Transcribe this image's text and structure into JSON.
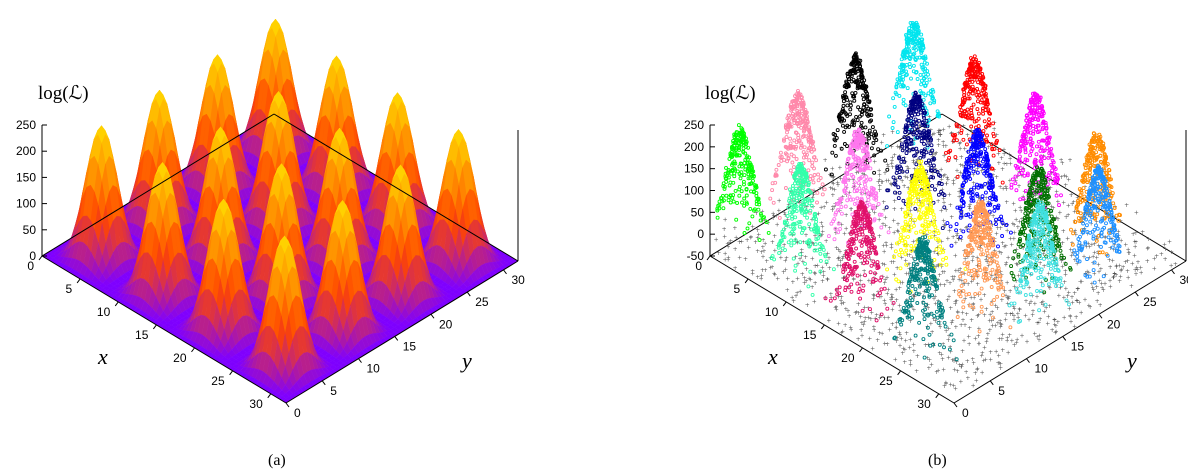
{
  "captions": [
    "(a)",
    "(b)"
  ],
  "chart_data": [
    {
      "type": "surface",
      "panel": "(a)",
      "zlabel": "log(ℒ)",
      "xlabel": "x",
      "ylabel": "y",
      "xlim": [
        0,
        32
      ],
      "ylim": [
        0,
        32
      ],
      "zlim": [
        0,
        250
      ],
      "x_ticks": [
        "0",
        "5",
        "10",
        "15",
        "20",
        "25",
        "30"
      ],
      "y_ticks": [
        "0",
        "5",
        "10",
        "15",
        "20",
        "25",
        "30"
      ],
      "z_ticks": [
        "0",
        "50",
        "100",
        "150",
        "200",
        "250"
      ],
      "peaks_grid": "4 x 4 egg-box",
      "peak_value": 250,
      "trough_value": 0,
      "colormap": [
        "#000000",
        "#7f00ff",
        "#ff4500",
        "#ffd700"
      ]
    },
    {
      "type": "scatter3d",
      "panel": "(b)",
      "zlabel": "log(ℒ)",
      "xlabel": "x",
      "ylabel": "y",
      "xlim": [
        0,
        32
      ],
      "ylim": [
        0,
        32
      ],
      "zlim": [
        -50,
        250
      ],
      "x_ticks": [
        "0",
        "5",
        "10",
        "15",
        "20",
        "25",
        "30"
      ],
      "y_ticks": [
        "0",
        "5",
        "10",
        "15",
        "20",
        "25",
        "30"
      ],
      "z_ticks": [
        "-50",
        "0",
        "50",
        "100",
        "150",
        "200",
        "250"
      ],
      "background_points_color": "#555555",
      "clusters": [
        {
          "x": 26,
          "y": 2,
          "color": "#008080"
        },
        {
          "x": 2,
          "y": 2,
          "color": "#00ff00"
        },
        {
          "x": 2,
          "y": 10,
          "color": "#ff88aa"
        },
        {
          "x": 2,
          "y": 18,
          "color": "#000000"
        },
        {
          "x": 10,
          "y": 2,
          "color": "#33ffaa"
        },
        {
          "x": 10,
          "y": 10,
          "color": "#ff77ee"
        },
        {
          "x": 10,
          "y": 18,
          "color": "#000080"
        },
        {
          "x": 10,
          "y": 26,
          "color": "#ff0000"
        },
        {
          "x": 18,
          "y": 2,
          "color": "#e0106a"
        },
        {
          "x": 18,
          "y": 10,
          "color": "#ffff00"
        },
        {
          "x": 18,
          "y": 18,
          "color": "#0000ff"
        },
        {
          "x": 18,
          "y": 26,
          "color": "#ff00ff"
        },
        {
          "x": 26,
          "y": 10,
          "color": "#ff9955"
        },
        {
          "x": 26,
          "y": 18,
          "color": "#007000"
        },
        {
          "x": 26,
          "y": 26,
          "color": "#ff8c00"
        },
        {
          "x": 2,
          "y": 26,
          "color": "#00e5ee"
        },
        {
          "x": 30,
          "y": 14,
          "color": "#40e0e0"
        },
        {
          "x": 30,
          "y": 22,
          "color": "#1e90ff"
        }
      ]
    }
  ]
}
